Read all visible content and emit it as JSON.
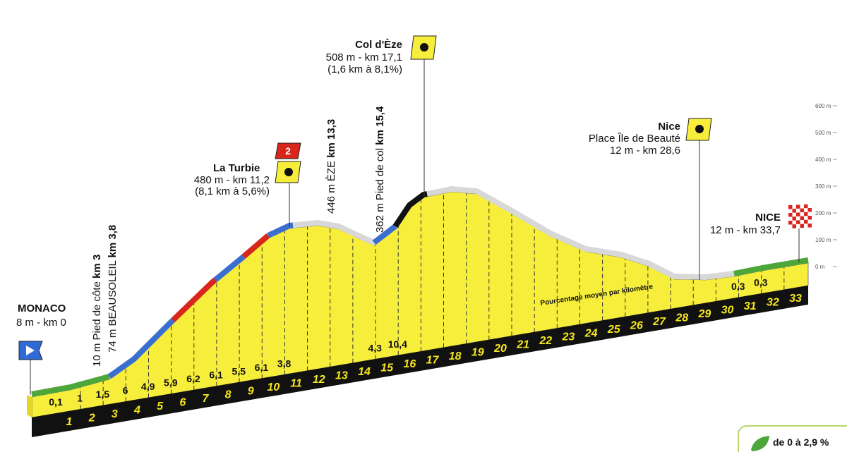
{
  "start": {
    "name": "MONACO",
    "detail": "8 m - km 0"
  },
  "vertical_notes": [
    {
      "text": "10 m Pied de côte",
      "km": "km 3"
    },
    {
      "text": "74 m BEAUSOLEIL",
      "km": "km 3,8"
    },
    {
      "text": "446 m ÈZE",
      "km": "km 13,3"
    },
    {
      "text": "362 m Pied de col",
      "km": "km 15,4"
    }
  ],
  "climbs": [
    {
      "name": "La Turbie",
      "category": "2",
      "altitude": "480 m -  km 11,2",
      "detail": "(8,1 km à 5,6%)"
    },
    {
      "name": "Col d'Èze",
      "altitude": "508 m - km 17,1",
      "detail": "(1,6 km à 8,1%)"
    }
  ],
  "sprint": {
    "name": "Nice",
    "place": "Place Île de Beauté",
    "detail": "12 m - km 28,6"
  },
  "finish": {
    "name": "NICE",
    "detail": "12 m - km 33,7"
  },
  "altitude_axis": [
    "600 m",
    "500 m",
    "400 m",
    "300 m",
    "200 m",
    "100 m",
    "0 m"
  ],
  "km_markers": [
    "1",
    "2",
    "3",
    "4",
    "5",
    "6",
    "7",
    "8",
    "9",
    "10",
    "11",
    "12",
    "13",
    "14",
    "15",
    "16",
    "17",
    "18",
    "19",
    "20",
    "21",
    "22",
    "23",
    "24",
    "25",
    "26",
    "27",
    "28",
    "29",
    "30",
    "31",
    "32",
    "33"
  ],
  "gradients": [
    "0,1",
    "1",
    "1,5",
    "6",
    "4,9",
    "5,9",
    "6,2",
    "6,1",
    "5,5",
    "6,1",
    "3,8",
    null,
    null,
    null,
    "4,3",
    "10,4",
    null,
    null,
    null,
    null,
    null,
    null,
    null,
    null,
    null,
    null,
    null,
    null,
    null,
    null,
    "0,3",
    "0,3",
    null
  ],
  "gradient_caption": "Pourcentage moyen par kilomètre",
  "legend": "de 0 à 2,9 %"
}
